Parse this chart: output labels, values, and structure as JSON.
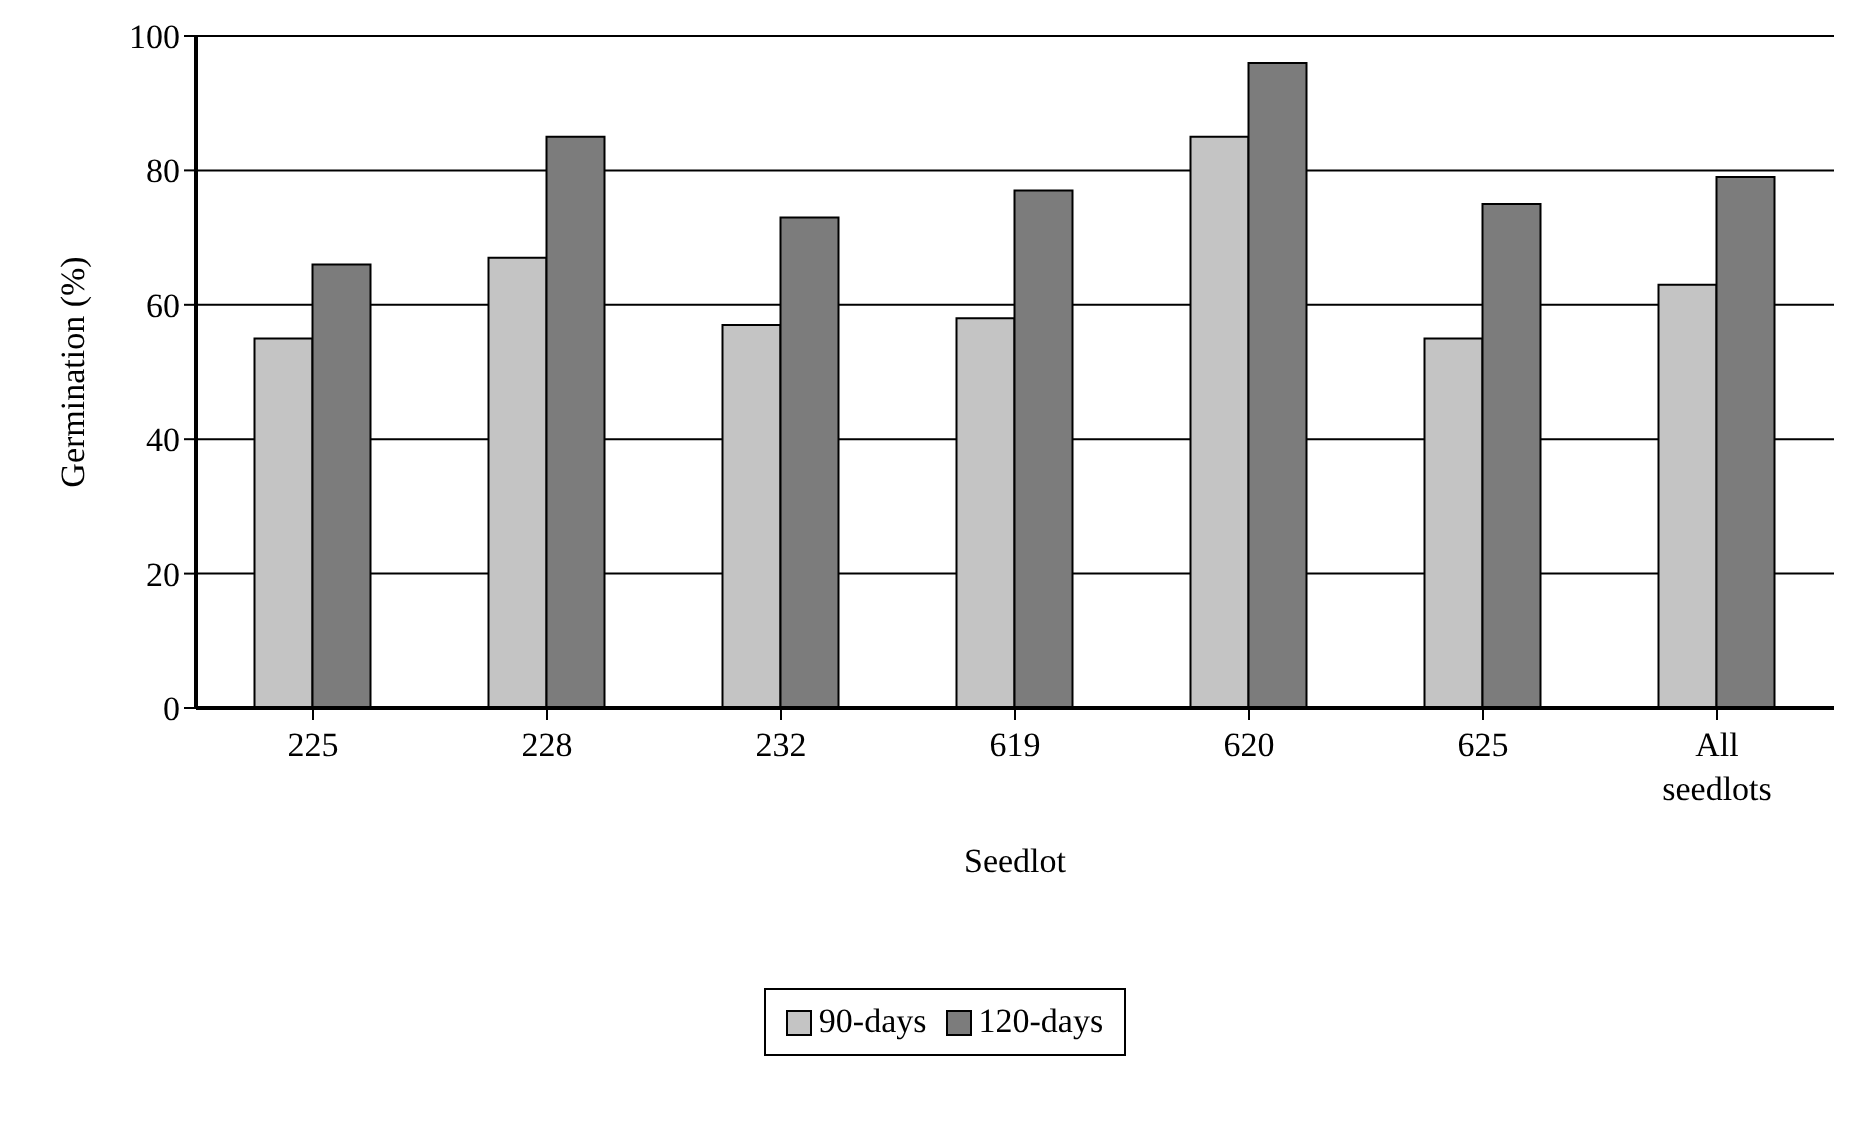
{
  "chart_data": {
    "type": "bar",
    "xlabel": "Seedlot",
    "ylabel": "Germination (%)",
    "categories": [
      "225",
      "228",
      "232",
      "619",
      "620",
      "625",
      "All seedlots"
    ],
    "series": [
      {
        "name": "90-days",
        "color": "#c4c4c4",
        "values": [
          55,
          67,
          57,
          58,
          85,
          55,
          63
        ]
      },
      {
        "name": "120-days",
        "color": "#7c7c7c",
        "values": [
          66,
          85,
          73,
          77,
          96,
          75,
          79
        ]
      }
    ],
    "ylim": [
      0,
      100
    ],
    "yticks": [
      0,
      20,
      40,
      60,
      80,
      100
    ],
    "grid": "y",
    "legend": "bottom"
  }
}
